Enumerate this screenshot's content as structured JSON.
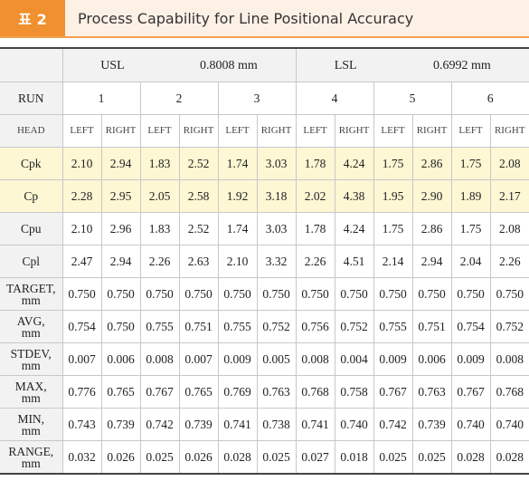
{
  "header": {
    "label": "표 2",
    "title": "Process Capability for Line Positional Accuracy"
  },
  "table": {
    "limits": [
      {
        "name": "USL",
        "value": "0.8008 mm"
      },
      {
        "name": "LSL",
        "value": "0.6992 mm"
      }
    ],
    "run_label": "RUN",
    "runs": [
      "1",
      "2",
      "3",
      "4",
      "5",
      "6"
    ],
    "head_label": "HEAD",
    "heads": [
      "LEFT",
      "RIGHT",
      "LEFT",
      "RIGHT",
      "LEFT",
      "RIGHT",
      "LEFT",
      "RIGHT",
      "LEFT",
      "RIGHT",
      "LEFT",
      "RIGHT"
    ],
    "rows": [
      {
        "label": [
          "Cpk"
        ],
        "highlight": true,
        "values": [
          "2.10",
          "2.94",
          "1.83",
          "2.52",
          "1.74",
          "3.03",
          "1.78",
          "4.24",
          "1.75",
          "2.86",
          "1.75",
          "2.08"
        ]
      },
      {
        "label": [
          "Cp"
        ],
        "highlight": true,
        "values": [
          "2.28",
          "2.95",
          "2.05",
          "2.58",
          "1.92",
          "3.18",
          "2.02",
          "4.38",
          "1.95",
          "2.90",
          "1.89",
          "2.17"
        ]
      },
      {
        "label": [
          "Cpu"
        ],
        "highlight": false,
        "values": [
          "2.10",
          "2.96",
          "1.83",
          "2.52",
          "1.74",
          "3.03",
          "1.78",
          "4.24",
          "1.75",
          "2.86",
          "1.75",
          "2.08"
        ]
      },
      {
        "label": [
          "Cpl"
        ],
        "highlight": false,
        "values": [
          "2.47",
          "2.94",
          "2.26",
          "2.63",
          "2.10",
          "3.32",
          "2.26",
          "4.51",
          "2.14",
          "2.94",
          "2.04",
          "2.26"
        ]
      },
      {
        "label": [
          "TARGET,",
          "mm"
        ],
        "highlight": false,
        "values": [
          "0.750",
          "0.750",
          "0.750",
          "0.750",
          "0.750",
          "0.750",
          "0.750",
          "0.750",
          "0.750",
          "0.750",
          "0.750",
          "0.750"
        ]
      },
      {
        "label": [
          "AVG,",
          "mm"
        ],
        "highlight": false,
        "values": [
          "0.754",
          "0.750",
          "0.755",
          "0.751",
          "0.755",
          "0.752",
          "0.756",
          "0.752",
          "0.755",
          "0.751",
          "0.754",
          "0.752"
        ]
      },
      {
        "label": [
          "STDEV,",
          "mm"
        ],
        "highlight": false,
        "values": [
          "0.007",
          "0.006",
          "0.008",
          "0.007",
          "0.009",
          "0.005",
          "0.008",
          "0.004",
          "0.009",
          "0.006",
          "0.009",
          "0.008"
        ]
      },
      {
        "label": [
          "MAX,",
          "mm"
        ],
        "highlight": false,
        "values": [
          "0.776",
          "0.765",
          "0.767",
          "0.765",
          "0.769",
          "0.763",
          "0.768",
          "0.758",
          "0.767",
          "0.763",
          "0.767",
          "0.768"
        ]
      },
      {
        "label": [
          "MIN,",
          "mm"
        ],
        "highlight": false,
        "values": [
          "0.743",
          "0.739",
          "0.742",
          "0.739",
          "0.741",
          "0.738",
          "0.741",
          "0.740",
          "0.742",
          "0.739",
          "0.740",
          "0.740"
        ]
      },
      {
        "label": [
          "RANGE,",
          "mm"
        ],
        "highlight": false,
        "values": [
          "0.032",
          "0.026",
          "0.025",
          "0.026",
          "0.028",
          "0.025",
          "0.027",
          "0.018",
          "0.025",
          "0.025",
          "0.028",
          "0.028"
        ]
      }
    ]
  }
}
